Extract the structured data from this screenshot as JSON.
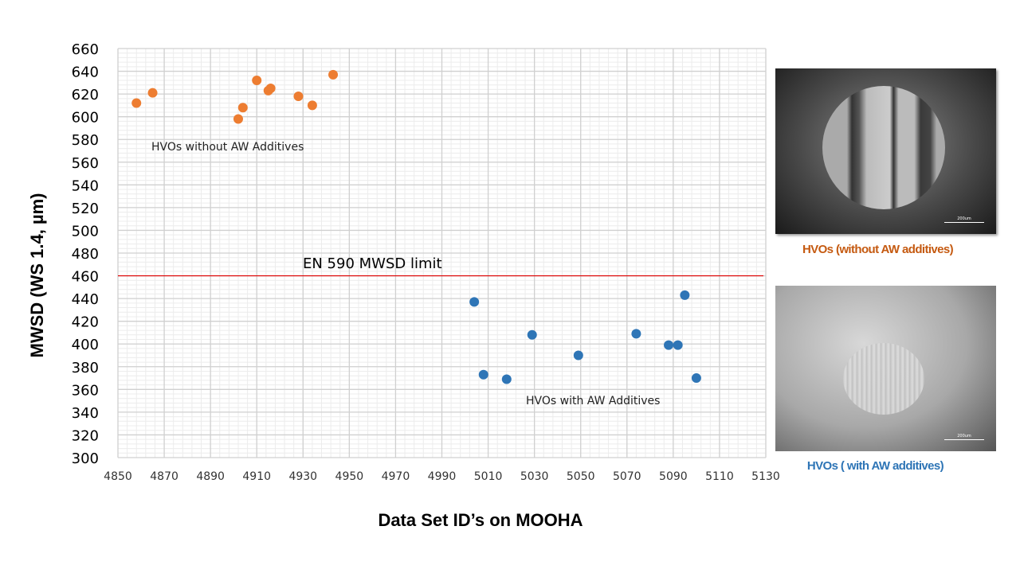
{
  "chart_data": {
    "type": "scatter",
    "xlabel": "Data Set ID’s on MOOHA",
    "ylabel": "MWSD (WS 1.4, µm)",
    "xlim": [
      4850,
      5130
    ],
    "ylim": [
      300,
      660
    ],
    "xticks": [
      4850,
      4870,
      4890,
      4910,
      4930,
      4950,
      4970,
      4990,
      5010,
      5030,
      5050,
      5070,
      5090,
      5110,
      5130
    ],
    "yticks": [
      300,
      320,
      340,
      360,
      380,
      400,
      420,
      440,
      460,
      480,
      500,
      520,
      540,
      560,
      580,
      600,
      620,
      640,
      660
    ],
    "grid": true,
    "series": [
      {
        "label": "HVOs without AW Additives",
        "color": "#ed7d31",
        "x": [
          4858,
          4865,
          4902,
          4904,
          4910,
          4915,
          4916,
          4928,
          4934,
          4943
        ],
        "y": [
          612,
          621,
          598,
          608,
          632,
          623,
          625,
          618,
          610,
          637
        ]
      },
      {
        "label": "HVOs with AW Additives",
        "color": "#2e75b6",
        "x": [
          5004,
          5008,
          5018,
          5029,
          5049,
          5074,
          5088,
          5092,
          5095,
          5100
        ],
        "y": [
          437,
          373,
          369,
          408,
          390,
          409,
          399,
          399,
          443,
          370
        ]
      }
    ],
    "reference_line": {
      "y": 460,
      "label": "EN 590 MWSD limit",
      "color": "#e00000"
    }
  },
  "images": [
    {
      "caption": "HVOs (without AW additives)",
      "scale_text": "200um",
      "caption_color": "#c55a11"
    },
    {
      "caption": "HVOs ( with AW additives)",
      "scale_text": "200um",
      "caption_color": "#2e75b6"
    }
  ]
}
